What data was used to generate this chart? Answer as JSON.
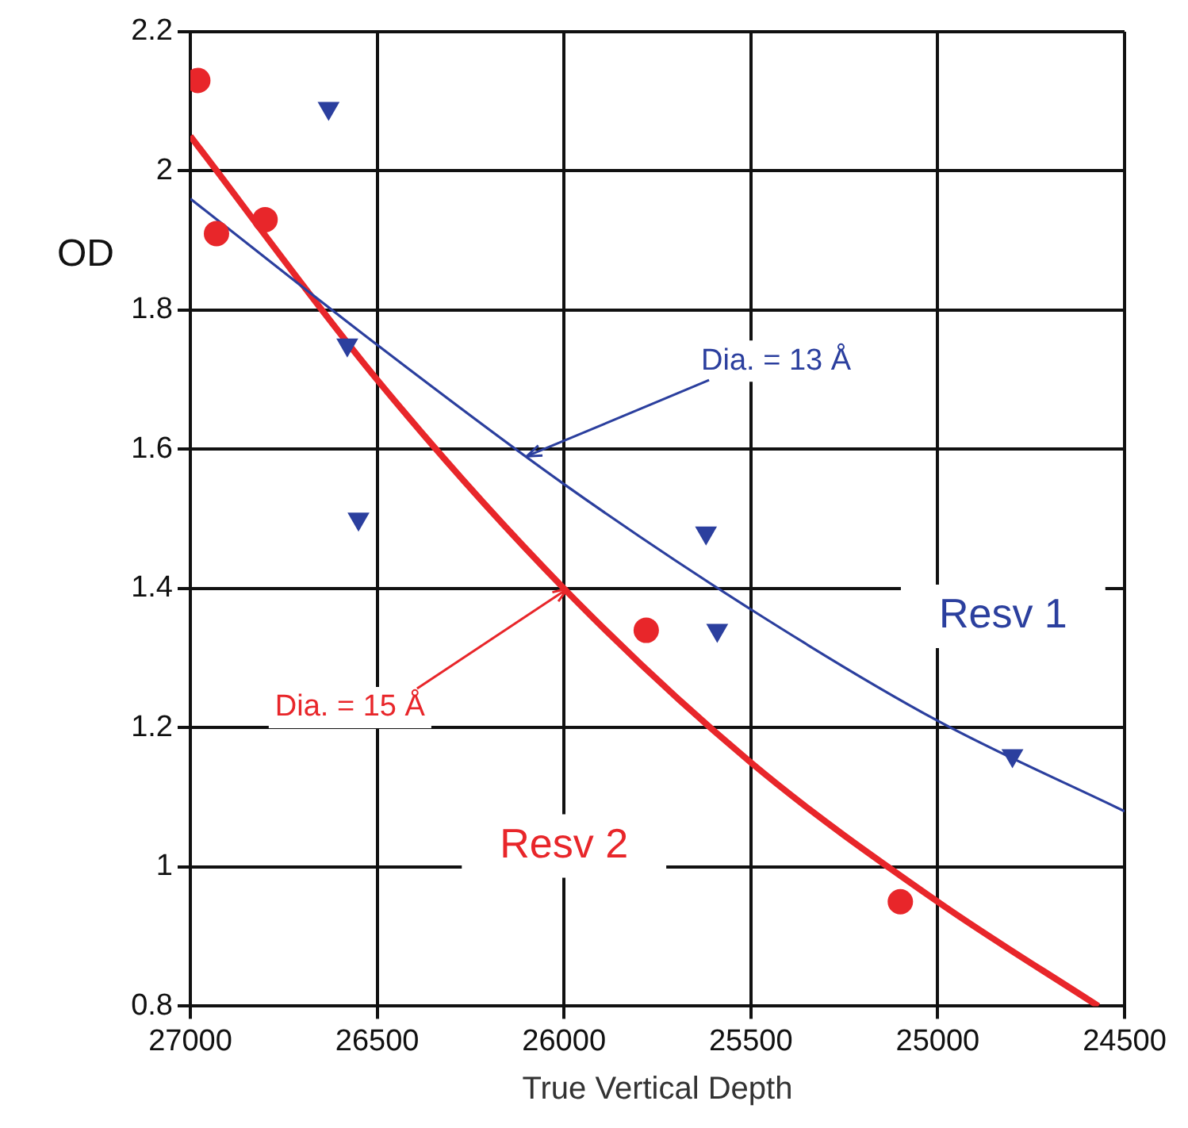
{
  "chart_data": {
    "type": "scatter",
    "xlabel": "True Vertical Depth",
    "ylabel": "OD",
    "xlim": [
      27000,
      24500
    ],
    "xticks": [
      27000,
      26500,
      26000,
      25500,
      25000,
      24500
    ],
    "ylim": [
      0.8,
      2.2
    ],
    "yticks": [
      0.8,
      1,
      1.2,
      1.4,
      1.6,
      1.8,
      2,
      2.2
    ],
    "grid": true,
    "legend": false,
    "series": [
      {
        "name": "Resv 1",
        "color": "#2b3f9e",
        "marker": "triangle",
        "x": [
          26630,
          26580,
          26550,
          25620,
          25590,
          24800
        ],
        "values": [
          2.09,
          1.75,
          1.5,
          1.48,
          1.34,
          1.16
        ]
      },
      {
        "name": "Resv 2",
        "color": "#e8262a",
        "marker": "circle",
        "x": [
          26980,
          26930,
          26800,
          25780,
          25100
        ],
        "values": [
          2.13,
          1.91,
          1.93,
          1.34,
          0.95
        ]
      },
      {
        "type": "line",
        "color": "#2b3f9e",
        "x": [
          27000,
          26500,
          26000,
          25500,
          25000,
          24500
        ],
        "values": [
          1.96,
          1.75,
          1.55,
          1.37,
          1.21,
          1.08
        ]
      },
      {
        "type": "line",
        "color": "#e8262a",
        "x": [
          27000,
          26500,
          26000,
          25500,
          25000,
          24570
        ],
        "values": [
          2.05,
          1.7,
          1.4,
          1.15,
          0.95,
          0.8
        ]
      }
    ],
    "annotations": [
      {
        "text": "Dia. = 13 Å",
        "x": 26100,
        "y": 1.59
      },
      {
        "text": "Dia. = 15 Å",
        "x": 25990,
        "y": 1.4
      }
    ]
  }
}
